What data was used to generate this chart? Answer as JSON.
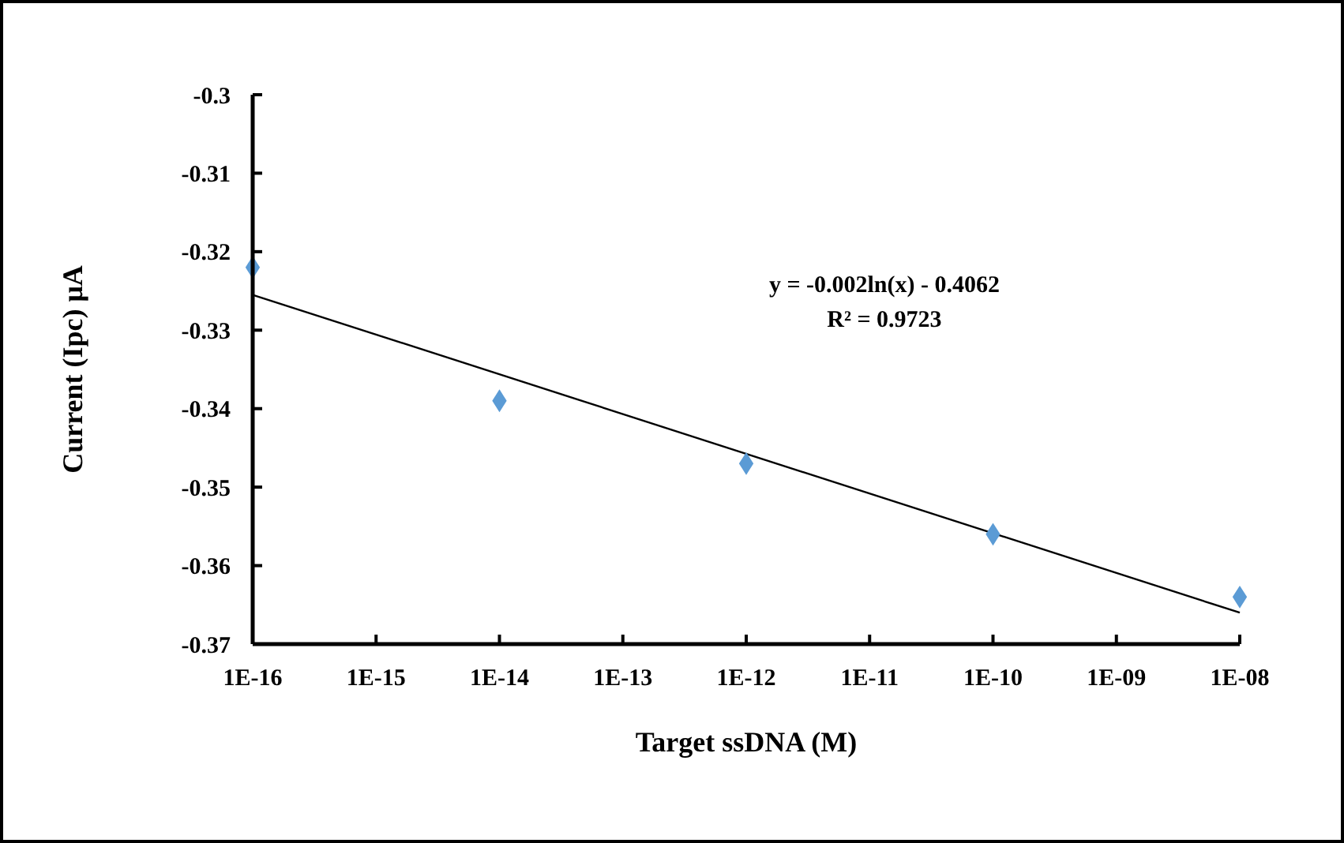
{
  "chart_data": {
    "type": "scatter",
    "xlabel": "Target ssDNA (M)",
    "ylabel": "Current  (Ipc) μA",
    "log": "x",
    "xlim": [
      1e-16,
      1e-08
    ],
    "ylim": [
      -0.37,
      -0.3
    ],
    "xticks": [
      {
        "value": 1e-16,
        "label": "1E-16"
      },
      {
        "value": 1e-15,
        "label": "1E-15"
      },
      {
        "value": 1e-14,
        "label": "1E-14"
      },
      {
        "value": 1e-13,
        "label": "1E-13"
      },
      {
        "value": 1e-12,
        "label": "1E-12"
      },
      {
        "value": 1e-11,
        "label": "1E-11"
      },
      {
        "value": 1e-10,
        "label": "1E-10"
      },
      {
        "value": 1e-09,
        "label": "1E-09"
      },
      {
        "value": 1e-08,
        "label": "1E-08"
      }
    ],
    "yticks": [
      -0.3,
      -0.31,
      -0.32,
      -0.33,
      -0.34,
      -0.35,
      -0.36,
      -0.37
    ],
    "grid": false,
    "marker": "diamond",
    "series": [
      {
        "color": "#5b9bd5",
        "x": [
          1e-16,
          1e-14,
          1e-12,
          1e-10,
          1e-08
        ],
        "values": [
          -0.322,
          -0.339,
          -0.347,
          -0.356,
          -0.364
        ]
      },
      {
        "type": "line",
        "color": "#000000",
        "x": [
          1e-16,
          1e-08
        ],
        "values": [
          -0.3255,
          -0.366
        ],
        "line_style": "solid",
        "marker": "none"
      }
    ],
    "annotations": [
      "y = -0.002ln(x) - 0.4062",
      "R² = 0.9723"
    ]
  }
}
